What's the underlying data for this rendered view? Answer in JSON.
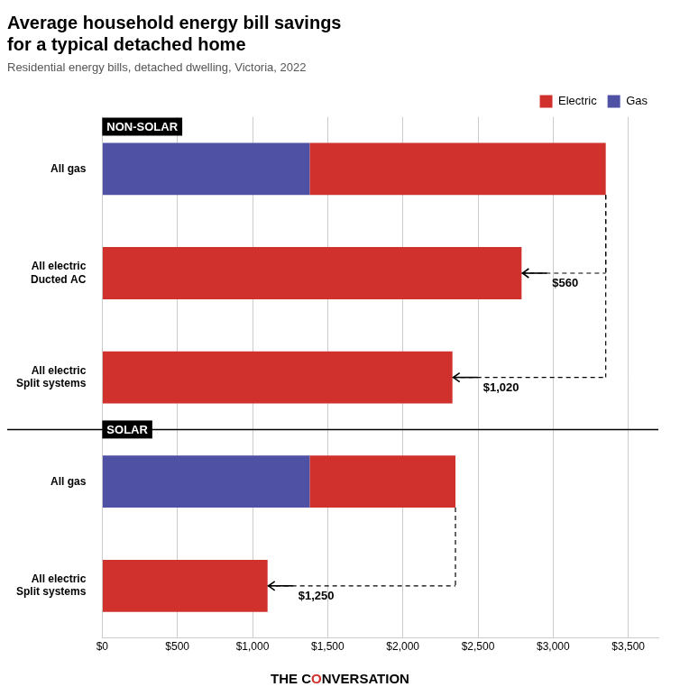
{
  "chart_data": {
    "type": "bar",
    "orientation": "horizontal",
    "stacked": true,
    "title": [
      "Average household energy bill savings",
      "for a typical detached home"
    ],
    "subtitle": "Residential energy bills, detached dwelling, Victoria, 2022",
    "categories": [
      "All gas",
      "All electric\nDucted AC",
      "All electric\nSplit systems",
      "All gas",
      "All electric\nSplit systems"
    ],
    "series": [
      {
        "name": "Gas",
        "color": "#4F52A4",
        "values": [
          1380,
          0,
          0,
          1380,
          0
        ]
      },
      {
        "name": "Electric",
        "color": "#D0312D",
        "values": [
          1970,
          2790,
          2330,
          970,
          1100
        ]
      }
    ],
    "xlim": [
      0,
      3700
    ],
    "xticks": [
      {
        "value": 0,
        "label": "$0"
      },
      {
        "value": 500,
        "label": "$500"
      },
      {
        "value": 1000,
        "label": "$1,000"
      },
      {
        "value": 1500,
        "label": "$1,500"
      },
      {
        "value": 2000,
        "label": "$2,000"
      },
      {
        "value": 2500,
        "label": "$2,500"
      },
      {
        "value": 3000,
        "label": "$3,000"
      },
      {
        "value": 3500,
        "label": "$3,500"
      }
    ],
    "grid": true,
    "legend": "upper right",
    "annotations": [
      {
        "type": "section",
        "text": "NON-SOLAR",
        "category": 0
      },
      {
        "type": "section",
        "text": "SOLAR",
        "category": 3
      },
      {
        "type": "saving",
        "text": "$560",
        "category": 1,
        "x": 2790,
        "baseline": 3350,
        "baseline_category": 0
      },
      {
        "type": "saving",
        "text": "$1,020",
        "category": 2,
        "x": 2330,
        "baseline": 3350,
        "baseline_category": 0
      },
      {
        "type": "saving",
        "text": "$1,250",
        "category": 4,
        "x": 1100,
        "baseline": 2350,
        "baseline_category": 3
      }
    ],
    "footer": [
      {
        "text": "THE C"
      },
      {
        "text": "O",
        "color": "#D0312D"
      },
      {
        "text": "NVERSATION"
      }
    ]
  }
}
